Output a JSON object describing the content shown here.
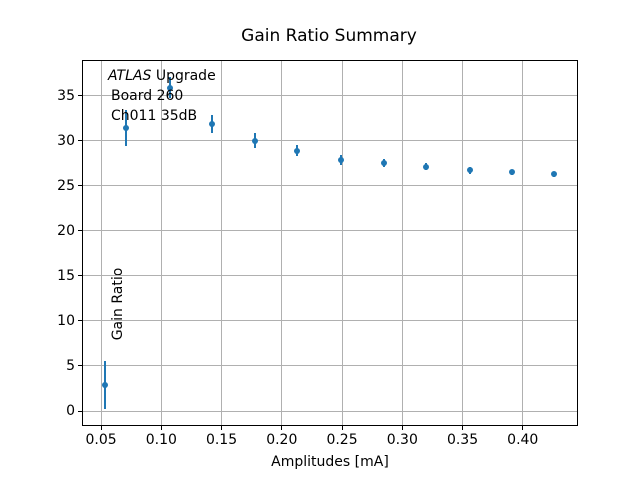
{
  "figure": {
    "title": "Gain Ratio Summary",
    "xlabel": "Amplitudes [mA]",
    "ylabel": "Gain Ratio"
  },
  "annotation": {
    "line1_italic": "ATLAS",
    "line1_regular": " Upgrade",
    "line2": "Board 260",
    "line3": "Ch011 35dB"
  },
  "chart_data": {
    "type": "scatter",
    "title": "Gain Ratio Summary",
    "xlabel": "Amplitudes [mA]",
    "ylabel": "Gain Ratio",
    "x": [
      0.053,
      0.071,
      0.107,
      0.142,
      0.178,
      0.213,
      0.249,
      0.285,
      0.32,
      0.356,
      0.391,
      0.426
    ],
    "y": [
      2.9,
      31.4,
      35.9,
      31.9,
      30.0,
      28.9,
      27.9,
      27.5,
      27.1,
      26.7,
      26.5,
      26.3
    ],
    "yerr": [
      2.65,
      2.0,
      1.15,
      1.0,
      0.85,
      0.65,
      0.55,
      0.45,
      0.4,
      0.35,
      0.3,
      0.28
    ],
    "xlim": [
      0.035,
      0.445
    ],
    "ylim": [
      -1.55,
      38.85
    ],
    "xticks": [
      0.05,
      0.1,
      0.15,
      0.2,
      0.25,
      0.3,
      0.35,
      0.4
    ],
    "xtick_labels": [
      "0.05",
      "0.10",
      "0.15",
      "0.20",
      "0.25",
      "0.30",
      "0.35",
      "0.40"
    ],
    "yticks": [
      0,
      5,
      10,
      15,
      20,
      25,
      30,
      35
    ],
    "ytick_labels": [
      "0",
      "5",
      "10",
      "15",
      "20",
      "25",
      "30",
      "35"
    ],
    "grid": true,
    "legend": null,
    "marker_color": "#1f77b4",
    "grid_color": "#b0b0b0",
    "annotation_lines": [
      "ATLAS Upgrade",
      "Board 260",
      "Ch011 35dB"
    ]
  }
}
